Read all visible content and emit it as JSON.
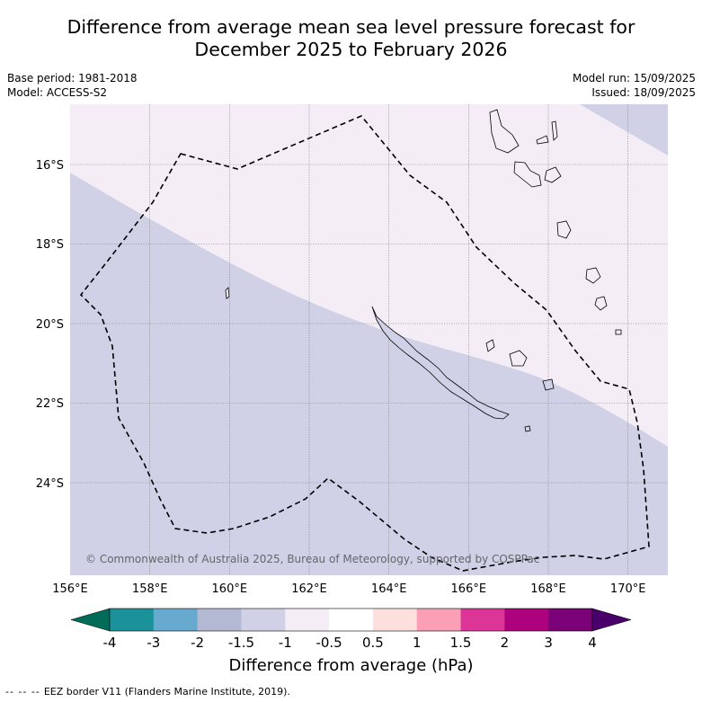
{
  "title": {
    "line1": "Difference from average mean sea level pressure forecast for",
    "line2": "December 2025 to February 2026"
  },
  "meta_left": {
    "base_period": "Base period: 1981-2018",
    "model": "Model: ACCESS-S2"
  },
  "meta_right": {
    "model_run": "Model run: 15/09/2025",
    "issued": "Issued: 18/09/2025"
  },
  "map": {
    "lon_range": [
      156,
      171
    ],
    "lat_range": [
      -26.3,
      -14.5
    ],
    "lon_ticks": [
      "156°E",
      "158°E",
      "160°E",
      "162°E",
      "164°E",
      "166°E",
      "168°E",
      "170°E"
    ],
    "lat_ticks": [
      "16°S",
      "18°S",
      "20°S",
      "22°S",
      "24°S"
    ],
    "gridlines": true,
    "copyright": "© Commonwealth of Australia 2025, Bureau of Meteorology, supported by COSPPac",
    "regions": [
      {
        "name": "-1.5 to -1 hPa",
        "color": "#d0d1e6"
      },
      {
        "name": "-1 to -0.5 hPa",
        "color": "#f4edf5"
      }
    ]
  },
  "colorbar": {
    "label": "Difference from average (hPa)",
    "ticks": [
      "-4",
      "-3",
      "-2",
      "-1.5",
      "-1",
      "-0.5",
      "0.5",
      "1",
      "1.5",
      "2",
      "3",
      "4"
    ],
    "colors": [
      "#1b9199",
      "#67a9cf",
      "#b3b9d3",
      "#d0d1e6",
      "#f4edf5",
      "#ffffff",
      "#fde0dd",
      "#fa9fb5",
      "#dd3497",
      "#ae017e",
      "#7a0177"
    ],
    "under_color": "#036c59",
    "over_color": "#49006a"
  },
  "footer": {
    "legend_symbol": "-- -- --",
    "text": "EEZ border V11 (Flanders Marine Institute, 2019)."
  },
  "colors": {
    "grid": "#777777",
    "eez": "#000000",
    "coast": "#000000"
  }
}
